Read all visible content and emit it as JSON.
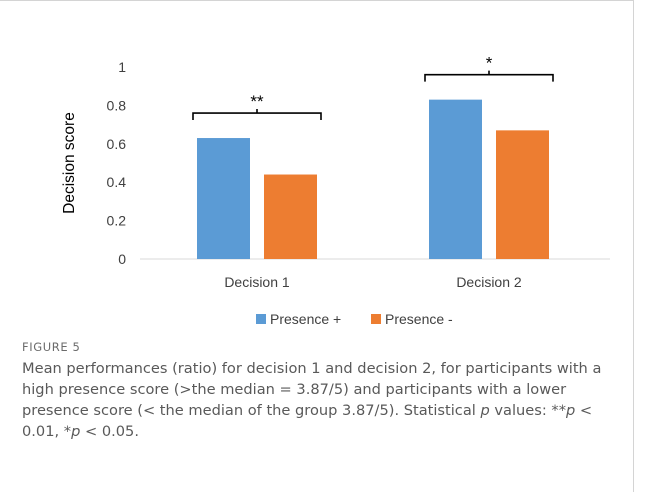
{
  "chart_data": {
    "type": "bar",
    "categories": [
      "Decision 1",
      "Decision 2"
    ],
    "series": [
      {
        "name": "Presence +",
        "values": [
          0.63,
          0.83
        ],
        "color": "#5B9BD5"
      },
      {
        "name": "Presence -",
        "values": [
          0.44,
          0.67
        ],
        "color": "#ED7D31"
      }
    ],
    "ylabel": "Decision score",
    "xlabel": "",
    "ylim": [
      0,
      1
    ],
    "yticks": [
      "0",
      "0.2",
      "0.4",
      "0.6",
      "0.8",
      "1"
    ],
    "yticks_values": [
      0,
      0.2,
      0.4,
      0.6,
      0.8,
      1
    ],
    "grid": false,
    "legend_position": "bottom",
    "significance": [
      {
        "category_index": 0,
        "label": "**"
      },
      {
        "category_index": 1,
        "label": "*"
      }
    ]
  },
  "caption": {
    "label": "FIGURE 5",
    "text_1": "Mean performances (ratio) for decision 1 and decision 2, for participants with a high presence score (>the median = 3.87/5) and participants with a lower presence score (< the median of the group 3.87/5). Statistical ",
    "p1": "p",
    "text_2": " values: **",
    "p2": "p",
    "text_3": " < 0.01, *",
    "p3": "p",
    "text_4": " < 0.05."
  }
}
